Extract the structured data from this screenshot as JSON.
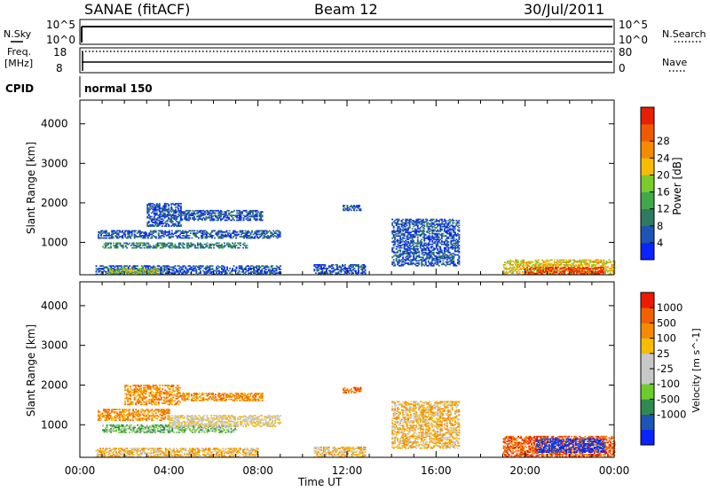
{
  "header": {
    "station": "SANAE (fitACF)",
    "beam": "Beam 12",
    "date": "30/Jul/2011"
  },
  "sky_panel": {
    "left_label": "N.Sky",
    "right_label": "N.Search",
    "left_ticks": [
      "10^5",
      "10^0"
    ],
    "right_ticks": [
      "10^5",
      "10^0"
    ]
  },
  "freq_panel": {
    "left_label_1": "Freq.",
    "left_label_2": "[MHz]",
    "right_label": "Nave",
    "left_ticks": [
      "18",
      "8"
    ],
    "right_ticks": [
      "80",
      "0"
    ]
  },
  "cpid_panel": {
    "label": "CPID",
    "mode_label": "normal 150"
  },
  "time_axis": {
    "tick_labels": [
      "00:00",
      "04:00",
      "08:00",
      "12:00",
      "16:00",
      "20:00",
      "00:00"
    ],
    "xlabel": "Time UT",
    "hours": [
      0,
      4,
      8,
      12,
      16,
      20,
      24
    ]
  },
  "colors": {
    "power_scale": [
      "#0a24ff",
      "#1c55b4",
      "#2f7a60",
      "#3fa84a",
      "#7ccb2a",
      "#f6bc00",
      "#f48a00",
      "#ee5a00",
      "#e62000"
    ],
    "velocity_scale": [
      "#ee1a00",
      "#f26000",
      "#f48a00",
      "#f6bc00",
      "#c8c8c8",
      "#c8c8c8",
      "#6ccc2c",
      "#2f8a50",
      "#1c55b4",
      "#0a24ff"
    ]
  },
  "chart_data": [
    {
      "type": "heatmap",
      "name": "power",
      "ylabel": "Slant Range [km]",
      "yticks": [
        1000,
        2000,
        3000,
        4000
      ],
      "ylim": [
        180,
        4600
      ],
      "xlim": [
        0,
        24
      ],
      "colorbar_label": "Power [dB]",
      "colorbar_ticks": [
        "4",
        "8",
        "12",
        "16",
        "20",
        "24",
        "28"
      ],
      "regions": [
        {
          "t": [
            0.8,
            9.0
          ],
          "r": [
            1100,
            1300
          ],
          "level": 1
        },
        {
          "t": [
            1.0,
            7.5
          ],
          "r": [
            850,
            1000
          ],
          "level": 2
        },
        {
          "t": [
            0.7,
            9.0
          ],
          "r": [
            180,
            420
          ],
          "level": 1
        },
        {
          "t": [
            1.2,
            3.5
          ],
          "r": [
            200,
            330
          ],
          "level": 4
        },
        {
          "t": [
            3.0,
            4.5
          ],
          "r": [
            1400,
            2000
          ],
          "level": 1
        },
        {
          "t": [
            4.5,
            8.2
          ],
          "r": [
            1550,
            1800
          ],
          "level": 1
        },
        {
          "t": [
            10.5,
            12.8
          ],
          "r": [
            180,
            450
          ],
          "level": 1
        },
        {
          "t": [
            11.8,
            12.6
          ],
          "r": [
            1800,
            1950
          ],
          "level": 1
        },
        {
          "t": [
            14.0,
            17.0
          ],
          "r": [
            400,
            1600
          ],
          "level": 1
        },
        {
          "t": [
            19.0,
            24.0
          ],
          "r": [
            180,
            560
          ],
          "level": 5
        },
        {
          "t": [
            20.0,
            23.5
          ],
          "r": [
            200,
            380
          ],
          "level": 8
        }
      ]
    },
    {
      "type": "heatmap",
      "name": "velocity",
      "ylabel": "Slant Range [km]",
      "yticks": [
        1000,
        2000,
        3000,
        4000
      ],
      "ylim": [
        180,
        4600
      ],
      "xlim": [
        0,
        24
      ],
      "colorbar_label": "Velocity [m s^-1]",
      "colorbar_ticks": [
        "1000",
        "500",
        "100",
        "25",
        "-25",
        "-100",
        "-500",
        "-1000"
      ],
      "regions": [
        {
          "t": [
            0.8,
            4.0
          ],
          "r": [
            1100,
            1400
          ],
          "level": 2
        },
        {
          "t": [
            1.0,
            7.0
          ],
          "r": [
            800,
            1000
          ],
          "level": 6
        },
        {
          "t": [
            4.0,
            9.0
          ],
          "r": [
            950,
            1250
          ],
          "level": 4
        },
        {
          "t": [
            0.7,
            8.0
          ],
          "r": [
            180,
            400
          ],
          "level": 3
        },
        {
          "t": [
            2.0,
            4.5
          ],
          "r": [
            1500,
            2000
          ],
          "level": 2
        },
        {
          "t": [
            4.5,
            8.2
          ],
          "r": [
            1600,
            1800
          ],
          "level": 2
        },
        {
          "t": [
            10.5,
            12.8
          ],
          "r": [
            180,
            450
          ],
          "level": 3
        },
        {
          "t": [
            11.8,
            12.6
          ],
          "r": [
            1800,
            1950
          ],
          "level": 1
        },
        {
          "t": [
            14.0,
            17.0
          ],
          "r": [
            400,
            1600
          ],
          "level": 3
        },
        {
          "t": [
            19.0,
            24.0
          ],
          "r": [
            180,
            700
          ],
          "level": 1
        },
        {
          "t": [
            20.5,
            23.5
          ],
          "r": [
            300,
            650
          ],
          "level": 9
        }
      ]
    }
  ]
}
